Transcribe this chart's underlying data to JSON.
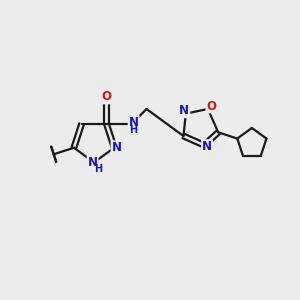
{
  "bg_color": "#ececec",
  "bond_color": "#1a1a1a",
  "N_color": "#1515cc",
  "O_color": "#cc1515",
  "line_width": 1.6,
  "font_size_atom": 8.5,
  "fig_width": 3.0,
  "fig_height": 3.0,
  "dpi": 100,
  "xlim": [
    0,
    10
  ],
  "ylim": [
    0,
    10
  ]
}
